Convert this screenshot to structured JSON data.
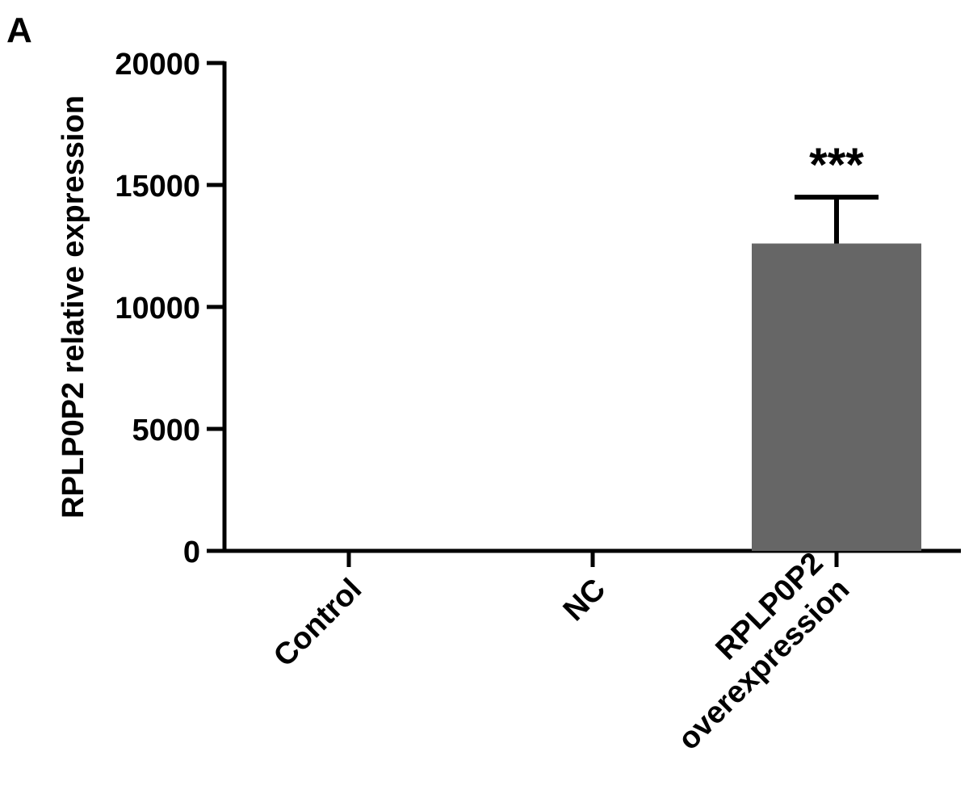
{
  "panel_label": "A",
  "chart_data": {
    "type": "bar",
    "title": "",
    "xlabel": "",
    "ylabel": "RPLP0P2 relative expression",
    "ylim": [
      0,
      20000
    ],
    "yticks": [
      0,
      5000,
      10000,
      15000,
      20000
    ],
    "ytick_labels": [
      "0",
      "5000",
      "10000",
      "15000",
      "20000"
    ],
    "categories": [
      [
        "Control"
      ],
      [
        "NC"
      ],
      [
        "RPLP0P2",
        "overexpression"
      ]
    ],
    "values": [
      1,
      1,
      12600
    ],
    "errors": [
      0,
      0,
      1900
    ],
    "annotations": [
      "",
      "",
      "***"
    ],
    "bar_color": "#666666",
    "grid": false
  }
}
